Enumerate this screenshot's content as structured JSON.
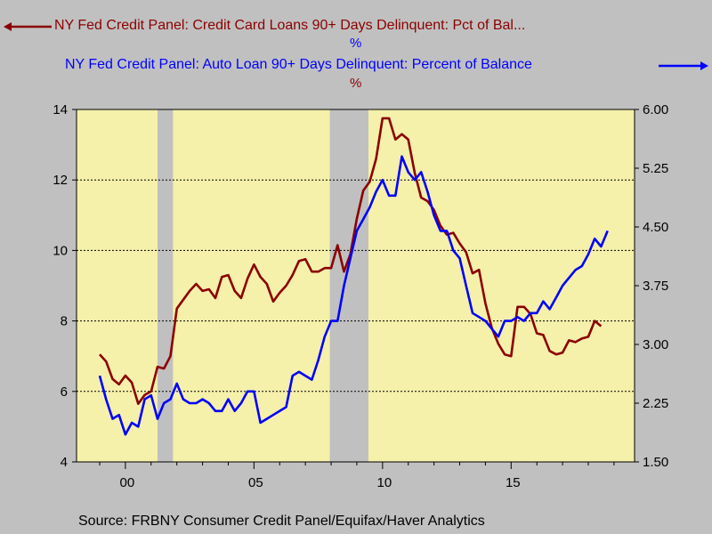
{
  "legend": {
    "cc_label": "NY Fed Credit Panel: Credit Card Loans 90+ Days Delinquent: Pct of Bal...",
    "cc_unit": "%",
    "auto_label": "NY Fed Credit Panel: Auto Loan 90+ Days Delinquent: Percent of Balance",
    "auto_unit": "%"
  },
  "source": "Source:  FRBNY Consumer Credit Panel/Equifax/Haver Analytics",
  "colors": {
    "credit_card": "#8b0000",
    "auto": "#0000ff",
    "plot_bg": "#f5f0aa",
    "recession": "#c0c0c0",
    "page_bg": "#c0c0c0"
  },
  "chart_data": {
    "type": "line",
    "x_tick_labels": [
      "00",
      "05",
      "10",
      "15"
    ],
    "x_tick_years": [
      2000,
      2005,
      2010,
      2015
    ],
    "xlim": [
      1998.1,
      2019.8
    ],
    "left_axis": {
      "ylim": [
        4,
        14
      ],
      "ticks": [
        "4",
        "6",
        "8",
        "10",
        "12",
        "14"
      ],
      "tick_values": [
        4,
        6,
        8,
        10,
        12,
        14
      ]
    },
    "right_axis": {
      "ylim": [
        1.5,
        6.0
      ],
      "ticks": [
        "1.50",
        "2.25",
        "3.00",
        "3.75",
        "4.50",
        "5.25",
        "6.00"
      ],
      "tick_values": [
        1.5,
        2.25,
        3.0,
        3.75,
        4.5,
        5.25,
        6.0
      ]
    },
    "dashed_gridlines_left": [
      6,
      8,
      10,
      12
    ],
    "recessions": [
      [
        2001.25,
        2001.85
      ],
      [
        2007.95,
        2009.45
      ]
    ],
    "series": [
      {
        "name": "NY Fed Credit Panel: Credit Card Loans 90+ Days Delinquent: Pct of Bal...",
        "axis": "left",
        "x": [
          1999.0,
          1999.25,
          1999.5,
          1999.75,
          2000.0,
          2000.25,
          2000.5,
          2000.75,
          2001.0,
          2001.25,
          2001.5,
          2001.75,
          2002.0,
          2002.25,
          2002.5,
          2002.75,
          2003.0,
          2003.25,
          2003.5,
          2003.75,
          2004.0,
          2004.25,
          2004.5,
          2004.75,
          2005.0,
          2005.25,
          2005.5,
          2005.75,
          2006.0,
          2006.25,
          2006.5,
          2006.75,
          2007.0,
          2007.25,
          2007.5,
          2007.75,
          2008.0,
          2008.25,
          2008.5,
          2008.75,
          2009.0,
          2009.25,
          2009.5,
          2009.75,
          2010.0,
          2010.25,
          2010.5,
          2010.75,
          2011.0,
          2011.25,
          2011.5,
          2011.75,
          2012.0,
          2012.25,
          2012.5,
          2012.75,
          2013.0,
          2013.25,
          2013.5,
          2013.75,
          2014.0,
          2014.25,
          2014.5,
          2014.75,
          2015.0,
          2015.25,
          2015.5,
          2015.75,
          2016.0,
          2016.25,
          2016.5,
          2016.75,
          2017.0,
          2017.25,
          2017.5,
          2017.75,
          2018.0,
          2018.25,
          2018.5
        ],
        "values": [
          7.05,
          6.85,
          6.35,
          6.2,
          6.45,
          6.25,
          5.65,
          5.9,
          6.0,
          6.7,
          6.65,
          7.0,
          8.35,
          8.6,
          8.85,
          9.05,
          8.85,
          8.9,
          8.65,
          9.25,
          9.3,
          8.85,
          8.65,
          9.2,
          9.6,
          9.25,
          9.05,
          8.55,
          8.8,
          9.0,
          9.3,
          9.7,
          9.75,
          9.4,
          9.4,
          9.5,
          9.5,
          10.15,
          9.4,
          9.9,
          10.9,
          11.7,
          11.95,
          12.6,
          13.75,
          13.75,
          13.15,
          13.3,
          13.15,
          12.2,
          11.5,
          11.4,
          11.15,
          10.7,
          10.45,
          10.5,
          10.2,
          9.95,
          9.35,
          9.45,
          8.5,
          7.8,
          7.35,
          7.05,
          7.0,
          8.4,
          8.4,
          8.2,
          7.65,
          7.6,
          7.15,
          7.05,
          7.1,
          7.45,
          7.4,
          7.5,
          7.55,
          8.0,
          7.85
        ]
      },
      {
        "name": "NY Fed Credit Panel: Auto Loan 90+ Days Delinquent: Percent of Balance",
        "axis": "right",
        "x": [
          1999.0,
          1999.25,
          1999.5,
          1999.75,
          2000.0,
          2000.25,
          2000.5,
          2000.75,
          2001.0,
          2001.25,
          2001.5,
          2001.75,
          2002.0,
          2002.25,
          2002.5,
          2002.75,
          2003.0,
          2003.25,
          2003.5,
          2003.75,
          2004.0,
          2004.25,
          2004.5,
          2004.75,
          2005.0,
          2005.25,
          2005.5,
          2005.75,
          2006.0,
          2006.25,
          2006.5,
          2006.75,
          2007.0,
          2007.25,
          2007.5,
          2007.75,
          2008.0,
          2008.25,
          2008.5,
          2008.75,
          2009.0,
          2009.25,
          2009.5,
          2009.75,
          2010.0,
          2010.25,
          2010.5,
          2010.75,
          2011.0,
          2011.25,
          2011.5,
          2011.75,
          2012.0,
          2012.25,
          2012.5,
          2012.75,
          2013.0,
          2013.25,
          2013.5,
          2013.75,
          2014.0,
          2014.25,
          2014.5,
          2014.75,
          2015.0,
          2015.25,
          2015.5,
          2015.75,
          2016.0,
          2016.25,
          2016.5,
          2016.75,
          2017.0,
          2017.25,
          2017.5,
          2017.75,
          2018.0,
          2018.25,
          2018.5,
          2018.75
        ],
        "values": [
          2.6,
          2.3,
          2.05,
          2.1,
          1.85,
          2.0,
          1.95,
          2.3,
          2.35,
          2.05,
          2.25,
          2.3,
          2.5,
          2.3,
          2.25,
          2.25,
          2.3,
          2.25,
          2.15,
          2.15,
          2.3,
          2.15,
          2.25,
          2.4,
          2.4,
          2.0,
          2.05,
          2.1,
          2.15,
          2.2,
          2.6,
          2.65,
          2.6,
          2.55,
          2.8,
          3.1,
          3.3,
          3.3,
          3.75,
          4.1,
          4.45,
          4.6,
          4.75,
          4.95,
          5.1,
          4.9,
          4.9,
          5.4,
          5.2,
          5.1,
          5.2,
          4.95,
          4.65,
          4.45,
          4.45,
          4.2,
          4.1,
          3.75,
          3.4,
          3.35,
          3.3,
          3.2,
          3.1,
          3.3,
          3.3,
          3.35,
          3.3,
          3.4,
          3.4,
          3.55,
          3.45,
          3.6,
          3.75,
          3.85,
          3.95,
          4.0,
          4.15,
          4.35,
          4.25,
          4.45
        ]
      }
    ]
  }
}
